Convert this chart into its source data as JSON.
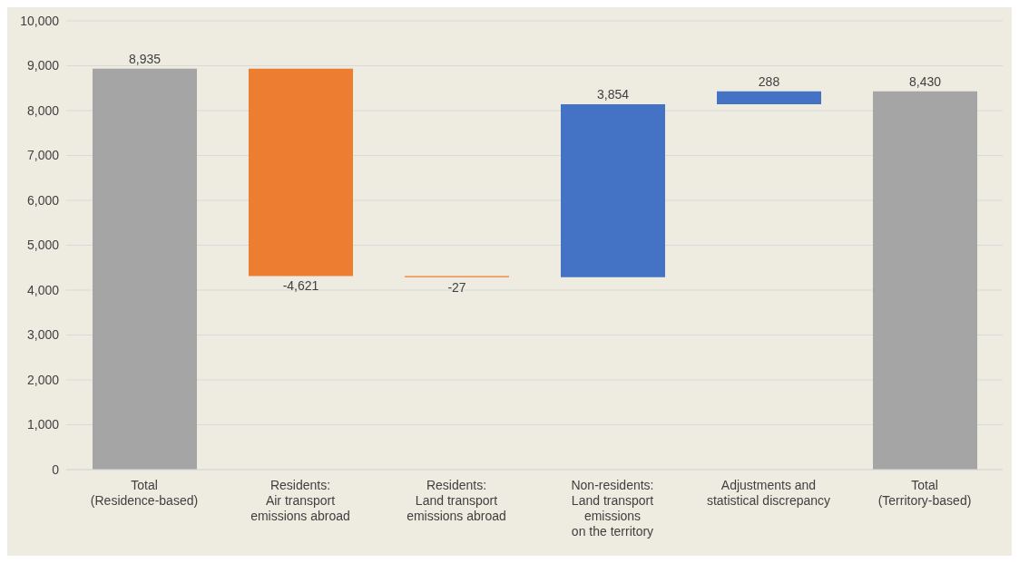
{
  "chart_data": {
    "type": "bar",
    "categories": [
      "Total\n(Residence-based)",
      "Residents:\nAir transport\nemissions abroad",
      "Residents:\nLand transport\nemissions abroad",
      "Non-residents:\nLand transport\nemissions\non the territory",
      "Adjustments and\nstatistical discrepancy",
      "Total\n(Territory-based)"
    ],
    "values": [
      8935,
      -4621,
      -27,
      3854,
      288,
      8430
    ],
    "base": [
      0,
      8935,
      4314,
      4287,
      8141,
      0
    ],
    "colors": [
      "#a5a5a5",
      "#ed7d31",
      "#ed7d31",
      "#4472c4",
      "#4472c4",
      "#a5a5a5"
    ],
    "value_labels": [
      "8,935",
      "-4,621",
      "-27",
      "3,854",
      "288",
      "8,430"
    ],
    "ylim": [
      0,
      10000
    ],
    "yticks": [
      0,
      {
        "value": 1000,
        "label": "1,000"
      },
      {
        "value": 2000,
        "label": "2,000"
      },
      {
        "value": 3000,
        "label": "3,000"
      },
      {
        "value": 4000,
        "label": "4,000"
      },
      {
        "value": 5000,
        "label": "5,000"
      },
      {
        "value": 6000,
        "label": "6,000"
      },
      {
        "value": 7000,
        "label": "7,000"
      },
      {
        "value": 8000,
        "label": "8,000"
      },
      {
        "value": 9000,
        "label": "9,000"
      },
      {
        "value": 10000,
        "label": "10,000"
      }
    ],
    "grid": "y"
  }
}
